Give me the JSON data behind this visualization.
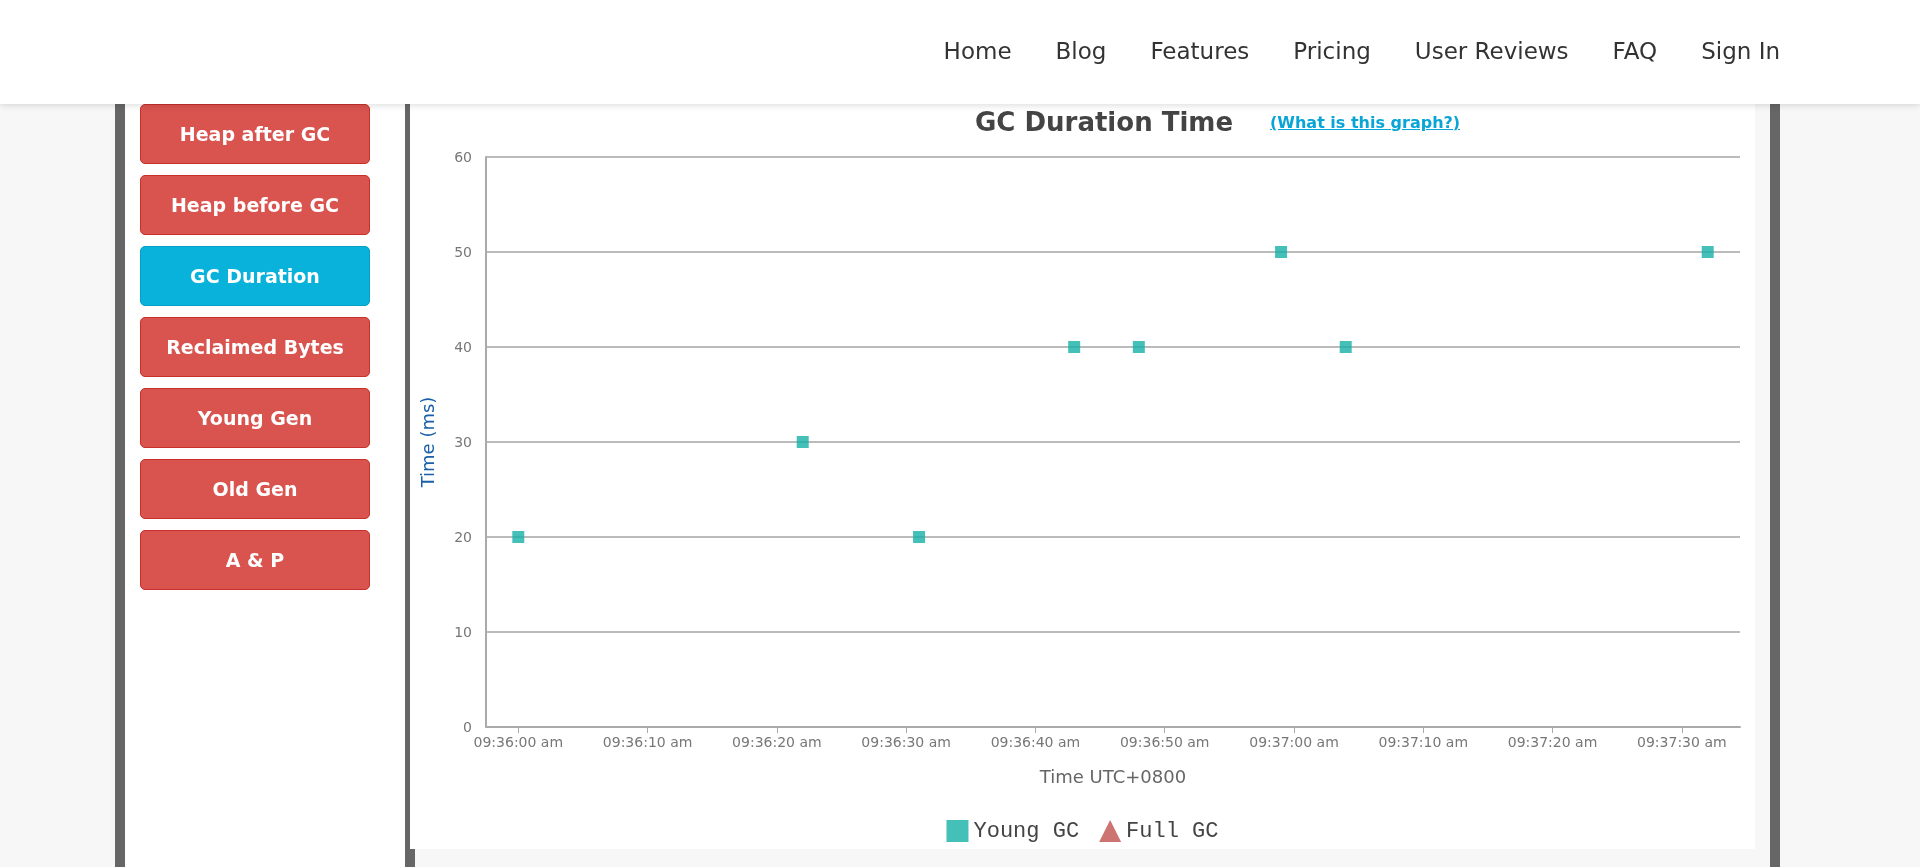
{
  "chart_data": {
    "type": "scatter",
    "title": "GC Duration Time",
    "xlabel": "Time UTC+0800",
    "ylabel": "Time (ms)",
    "annotations": [
      "(What is this graph?)",
      "Home",
      "Blog",
      "Features",
      "Pricing",
      "User Reviews",
      "FAQ",
      "Sign In",
      "Heap after GC",
      "Heap before GC",
      "GC Duration",
      "Reclaimed Bytes",
      "Young Gen",
      "Old Gen",
      "A & P"
    ],
    "series": [
      {
        "name": "Young GC",
        "color": "#17b0a6",
        "marker": "square",
        "x": [
          9.6,
          9.606111,
          9.608611,
          9.611944,
          9.613333,
          9.616389,
          9.617778,
          9.625556
        ],
        "values": [
          20,
          30,
          20,
          40,
          40,
          50,
          40,
          50
        ]
      },
      {
        "name": "Full GC",
        "color": "#c0504d",
        "marker": "triangle"
      }
    ],
    "xlim": [
      9.599306,
      9.62625
    ],
    "xticks": [
      {
        "value": 9.6,
        "label": "09:36:00 am"
      },
      {
        "value": 9.602778,
        "label": "09:36:10 am"
      },
      {
        "value": 9.605556,
        "label": "09:36:20 am"
      },
      {
        "value": 9.608333,
        "label": "09:36:30 am"
      },
      {
        "value": 9.611111,
        "label": "09:36:40 am"
      },
      {
        "value": 9.613889,
        "label": "09:36:50 am"
      },
      {
        "value": 9.616667,
        "label": "09:37:00 am"
      },
      {
        "value": 9.619444,
        "label": "09:37:10 am"
      },
      {
        "value": 9.622222,
        "label": "09:37:20 am"
      },
      {
        "value": 9.625,
        "label": "09:37:30 am"
      }
    ],
    "ylim": [
      0,
      60
    ],
    "yticks": [
      0,
      10,
      20,
      30,
      40,
      50,
      60
    ],
    "grid": "y",
    "legend": "bottom"
  }
}
